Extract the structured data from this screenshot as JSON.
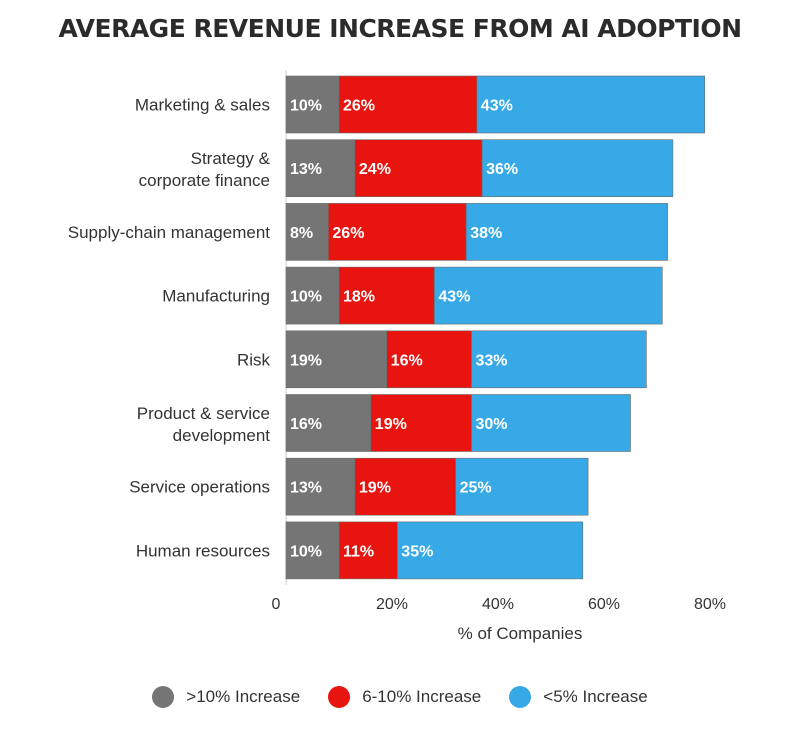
{
  "chart_data": {
    "type": "bar",
    "orientation": "horizontal",
    "stacked": true,
    "title": "AVERAGE REVENUE INCREASE FROM AI ADOPTION",
    "xlabel": "% of Companies",
    "ylabel": "",
    "xlim": [
      0,
      80
    ],
    "xticks": [
      {
        "value": 0,
        "label": "0"
      },
      {
        "value": 20,
        "label": "20%"
      },
      {
        "value": 40,
        "label": "40%"
      },
      {
        "value": 60,
        "label": "60%"
      },
      {
        "value": 80,
        "label": "80%"
      }
    ],
    "grid": false,
    "legend_position": "bottom",
    "categories": [
      "Marketing & sales",
      "Strategy & corporate finance",
      "Supply-chain management",
      "Manufacturing",
      "Risk",
      "Product & service development",
      "Service operations",
      "Human resources"
    ],
    "series": [
      {
        "name": ">10% Increase",
        "color": "#757575",
        "values": [
          10,
          13,
          8,
          10,
          19,
          16,
          13,
          10
        ],
        "labels": [
          "10%",
          "13%",
          "8%",
          "10%",
          "19%",
          "16%",
          "13%",
          "10%"
        ]
      },
      {
        "name": "6-10% Increase",
        "color": "#e8140f",
        "values": [
          26,
          24,
          26,
          18,
          16,
          19,
          19,
          11
        ],
        "labels": [
          "26%",
          "24%",
          "26%",
          "18%",
          "16%",
          "19%",
          "19%",
          "11%"
        ]
      },
      {
        "name": "<5% Increase",
        "color": "#36a9e6",
        "values": [
          43,
          36,
          38,
          43,
          33,
          30,
          25,
          35
        ],
        "labels": [
          "43%",
          "36%",
          "38%",
          "43%",
          "33%",
          "30%",
          "25%",
          "35%"
        ]
      }
    ]
  }
}
